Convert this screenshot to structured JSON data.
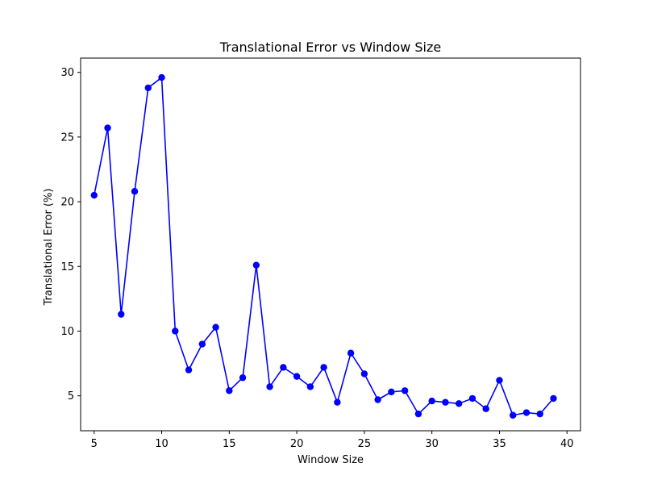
{
  "chart_data": {
    "type": "line",
    "title": "Translational Error vs Window Size",
    "xlabel": "Window Size",
    "ylabel": "Translational Error (%)",
    "xlim": [
      4,
      41
    ],
    "ylim": [
      2.3,
      31.1
    ],
    "xticks": [
      5,
      10,
      15,
      20,
      25,
      30,
      35,
      40
    ],
    "yticks": [
      5,
      10,
      15,
      20,
      25,
      30
    ],
    "grid": false,
    "series": [
      {
        "color": "#0000ff",
        "marker": "circle",
        "x": [
          5,
          6,
          7,
          8,
          9,
          10,
          11,
          12,
          13,
          14,
          15,
          16,
          17,
          18,
          19,
          20,
          21,
          22,
          23,
          24,
          25,
          26,
          27,
          28,
          29,
          30,
          31,
          32,
          33,
          34,
          35,
          36,
          37,
          38,
          39
        ],
        "y": [
          20.5,
          25.7,
          11.3,
          20.8,
          28.8,
          29.6,
          10.0,
          7.0,
          9.0,
          10.3,
          5.4,
          6.4,
          15.1,
          5.7,
          7.2,
          6.5,
          5.7,
          7.2,
          4.5,
          8.3,
          6.7,
          4.7,
          5.3,
          5.4,
          3.6,
          4.6,
          4.5,
          4.4,
          4.8,
          4.0,
          6.2,
          3.5,
          3.7,
          3.6,
          4.8
        ]
      }
    ]
  }
}
